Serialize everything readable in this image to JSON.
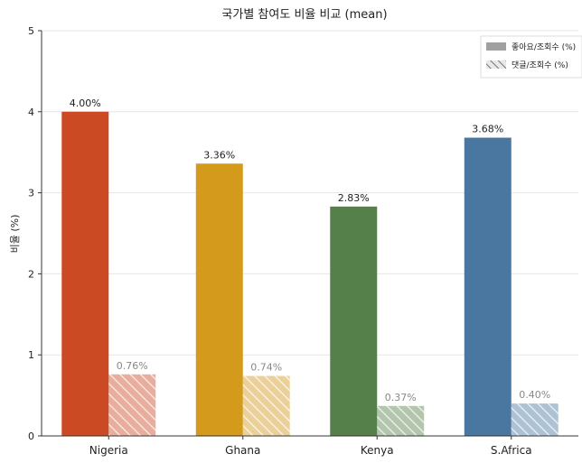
{
  "chart_data": {
    "type": "bar",
    "title": "국가별 참여도 비율 비교 (mean)",
    "xlabel": "",
    "ylabel": "비율 (%)",
    "ylim": [
      0,
      5
    ],
    "yticks": [
      "0",
      "1",
      "2",
      "3",
      "4",
      "5"
    ],
    "categories": [
      "Nigeria",
      "Ghana",
      "Kenya",
      "S.Africa"
    ],
    "category_colors": [
      "#cc4a23",
      "#d49a1c",
      "#56804a",
      "#4a77a0"
    ],
    "series": [
      {
        "name": "좋아요/조회수 (%)",
        "style": "solid",
        "values": [
          4.0,
          3.36,
          2.83,
          3.68
        ],
        "labels": [
          "4.00%",
          "3.36%",
          "2.83%",
          "3.68%"
        ]
      },
      {
        "name": "댓글/조회수 (%)",
        "style": "hatched",
        "values": [
          0.76,
          0.74,
          0.37,
          0.4
        ],
        "labels": [
          "0.76%",
          "0.74%",
          "0.37%",
          "0.40%"
        ]
      }
    ],
    "legend": {
      "position": "top-right"
    },
    "grid": true
  }
}
